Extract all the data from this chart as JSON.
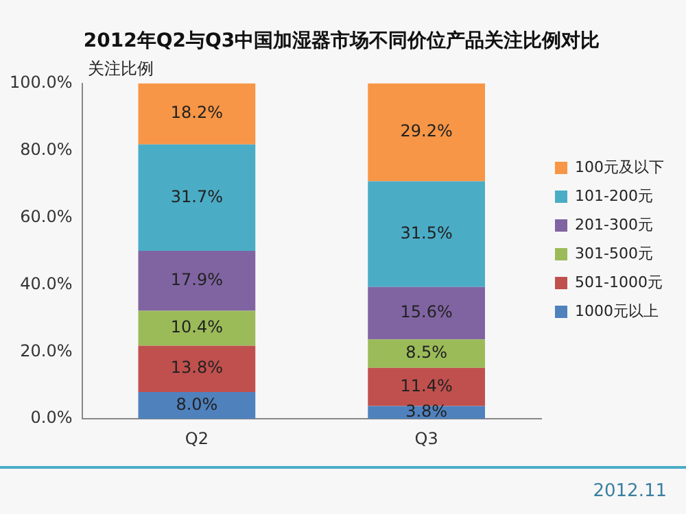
{
  "chart_data": {
    "type": "bar",
    "title": "2012年Q2与Q3中国加湿器市场不同价位产品关注比例对比",
    "ylabel": "关注比例",
    "categories": [
      "Q2",
      "Q3"
    ],
    "stacked": true,
    "legend": "right",
    "grid": false,
    "ylim": [
      0,
      100
    ],
    "yticks": [
      {
        "value": 0,
        "label": "0.0%"
      },
      {
        "value": 20,
        "label": "20.0%"
      },
      {
        "value": 40,
        "label": "40.0%"
      },
      {
        "value": 60,
        "label": "60.0%"
      },
      {
        "value": 80,
        "label": "80.0%"
      },
      {
        "value": 100,
        "label": "100.0%"
      }
    ],
    "series": [
      {
        "name": "1000元以上",
        "color": "#4f81bd",
        "values": [
          8.0,
          3.8
        ],
        "value_labels": [
          "8.0%",
          "3.8%"
        ]
      },
      {
        "name": "501-1000元",
        "color": "#c0504d",
        "values": [
          13.8,
          11.4
        ],
        "value_labels": [
          "13.8%",
          "11.4%"
        ]
      },
      {
        "name": "301-500元",
        "color": "#9bbb59",
        "values": [
          10.4,
          8.5
        ],
        "value_labels": [
          "10.4%",
          "8.5%"
        ]
      },
      {
        "name": "201-300元",
        "color": "#8064a2",
        "values": [
          17.9,
          15.6
        ],
        "value_labels": [
          "17.9%",
          "15.6%"
        ]
      },
      {
        "name": "101-200元",
        "color": "#4bacc6",
        "values": [
          31.7,
          31.5
        ],
        "value_labels": [
          "31.7%",
          "31.5%"
        ]
      },
      {
        "name": "100元及以下",
        "color": "#f79646",
        "values": [
          18.2,
          29.2
        ],
        "value_labels": [
          "18.2%",
          "29.2%"
        ]
      }
    ],
    "annotations": [
      "2012.11"
    ]
  }
}
